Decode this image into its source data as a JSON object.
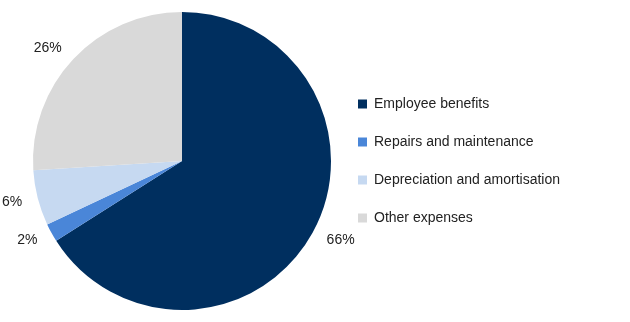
{
  "chart_data": {
    "type": "pie",
    "categories": [
      "Employee benefits",
      "Repairs and maintenance",
      "Depreciation and amortisation",
      "Other expenses"
    ],
    "values": [
      66,
      2,
      6,
      26
    ],
    "value_labels": [
      "66%",
      "2%",
      "6%",
      "26%"
    ],
    "colors": [
      "#002f5f",
      "#4a86d8",
      "#c6d9f1",
      "#d9d9d9"
    ],
    "data_labels": true,
    "legend": "right"
  }
}
